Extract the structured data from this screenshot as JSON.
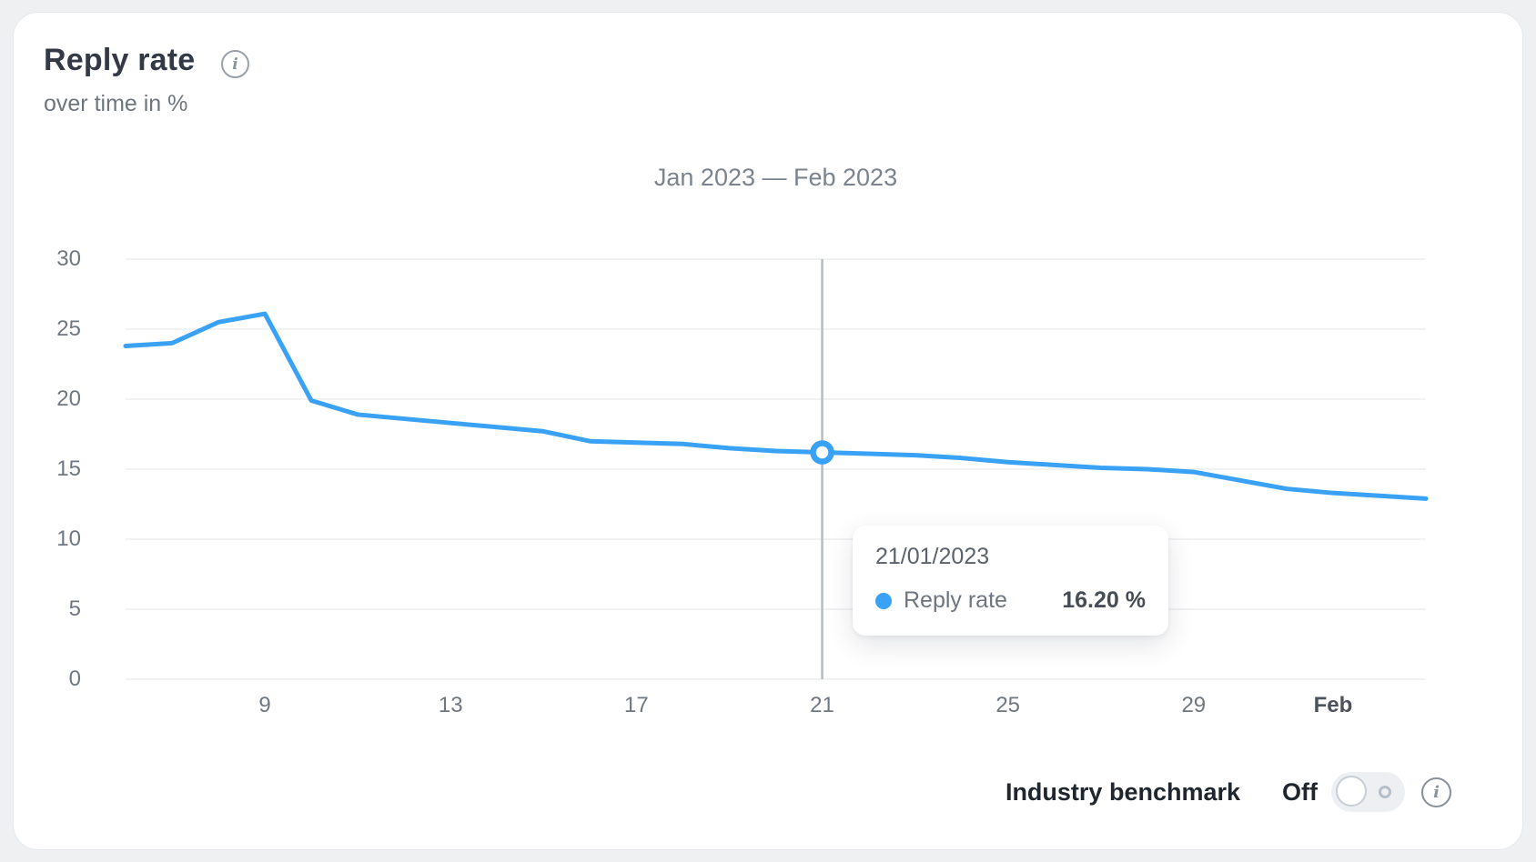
{
  "page": {
    "background": "#eef0f2",
    "card_background": "#ffffff"
  },
  "header": {
    "title": "Reply rate",
    "subtitle": "over time in %",
    "info_icon": "i"
  },
  "chart_data": {
    "type": "line",
    "title": "Jan 2023 — Feb 2023",
    "x": [
      "06/01/2023",
      "07/01/2023",
      "08/01/2023",
      "09/01/2023",
      "10/01/2023",
      "11/01/2023",
      "12/01/2023",
      "13/01/2023",
      "14/01/2023",
      "15/01/2023",
      "16/01/2023",
      "17/01/2023",
      "18/01/2023",
      "19/01/2023",
      "20/01/2023",
      "21/01/2023",
      "22/01/2023",
      "23/01/2023",
      "24/01/2023",
      "25/01/2023",
      "26/01/2023",
      "27/01/2023",
      "28/01/2023",
      "29/01/2023",
      "30/01/2023",
      "31/01/2023",
      "01/02/2023",
      "02/02/2023",
      "03/02/2023"
    ],
    "series": [
      {
        "name": "Reply rate",
        "color": "#3aa2f6",
        "values": [
          23.8,
          24.0,
          25.5,
          26.1,
          19.9,
          18.9,
          18.6,
          18.3,
          18.0,
          17.7,
          17.0,
          16.9,
          16.8,
          16.5,
          16.3,
          16.2,
          16.1,
          16.0,
          15.8,
          15.5,
          15.3,
          15.1,
          15.0,
          14.8,
          14.2,
          13.6,
          13.3,
          13.1,
          12.9
        ]
      }
    ],
    "x_ticks": [
      {
        "label": "9",
        "index": 3,
        "bold": false
      },
      {
        "label": "13",
        "index": 7,
        "bold": false
      },
      {
        "label": "17",
        "index": 11,
        "bold": false
      },
      {
        "label": "21",
        "index": 15,
        "bold": false
      },
      {
        "label": "25",
        "index": 19,
        "bold": false
      },
      {
        "label": "29",
        "index": 23,
        "bold": false
      },
      {
        "label": "Feb",
        "index": 26,
        "bold": true
      }
    ],
    "y_ticks": [
      0,
      5,
      10,
      15,
      20,
      25,
      30
    ],
    "ylim": [
      0,
      30
    ],
    "grid": true,
    "legend_position": "tooltip",
    "highlight_index": 15,
    "crosshair_color": "#b8bcc4",
    "gridline_color": "#ecedf0"
  },
  "tooltip": {
    "date": "21/01/2023",
    "series_label": "Reply rate",
    "value": "16.20 %",
    "dot_color": "#3aa2f6"
  },
  "benchmark": {
    "label": "Industry benchmark",
    "state": "Off",
    "info_icon": "i"
  }
}
